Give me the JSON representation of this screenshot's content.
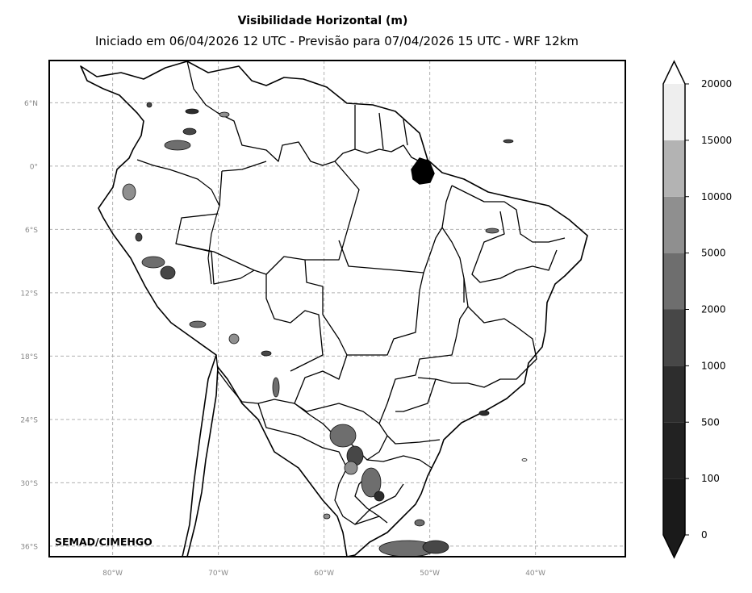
{
  "map": {
    "title": "Visibilidade Horizontal (m)",
    "subtitle": "Iniciado em 06/04/2026 12 UTC - Previsão para 07/04/2026 15 UTC - WRF 12km",
    "credit": "SEMAD/CIMEHGO",
    "extent": {
      "lon_min": -86,
      "lon_max": -31.5,
      "lat_min": -37,
      "lat_max": 10
    },
    "lat_labels": [
      {
        "label": "6°N",
        "lat": 6
      },
      {
        "label": "0°",
        "lat": 0
      },
      {
        "label": "6°S",
        "lat": -6
      },
      {
        "label": "12°S",
        "lat": -12
      },
      {
        "label": "18°S",
        "lat": -18
      },
      {
        "label": "24°S",
        "lat": -24
      },
      {
        "label": "30°S",
        "lat": -30
      },
      {
        "label": "36°S",
        "lat": -36
      }
    ],
    "lon_labels": [
      {
        "label": "80°W",
        "lon": -80
      },
      {
        "label": "70°W",
        "lon": -70
      },
      {
        "label": "60°W",
        "lon": -60
      },
      {
        "label": "50°W",
        "lon": -50
      },
      {
        "label": "40°W",
        "lon": -40
      }
    ],
    "grid": true,
    "colorbar": {
      "levels": [
        "0",
        "100",
        "500",
        "1000",
        "2000",
        "5000",
        "10000",
        "15000",
        "20000"
      ],
      "colors": [
        "#1a1a1a",
        "#222222",
        "#2d2d2d",
        "#474747",
        "#6e6e6e",
        "#8f8f8f",
        "#b3b3b3",
        "#eeeeee"
      ],
      "extend": "both",
      "under_color": "#1a1a1a",
      "over_color": "#ffffff"
    },
    "colors": {
      "grid": "#b0b0b0",
      "border": "#000000",
      "tick_label": "#888888"
    }
  }
}
